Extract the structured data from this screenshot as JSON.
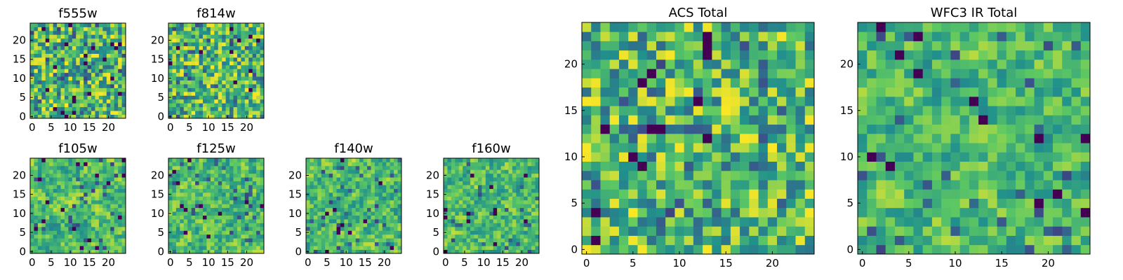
{
  "figure": {
    "colormap": "viridis",
    "colormap_stops": [
      "#440154",
      "#3b528b",
      "#21918c",
      "#5ec962",
      "#fde725"
    ]
  },
  "chart_data": [
    {
      "type": "heatmap",
      "title": "f555w",
      "grid_size": 25,
      "xticks": [
        0,
        5,
        10,
        15,
        20
      ],
      "yticks": [
        0,
        5,
        10,
        15,
        20
      ],
      "xlim": [
        0,
        24
      ],
      "ylim": [
        0,
        24
      ],
      "values_description": "25x25 random noise image, mostly green-yellow"
    },
    {
      "type": "heatmap",
      "title": "f814w",
      "grid_size": 25,
      "xticks": [
        0,
        5,
        10,
        15,
        20
      ],
      "yticks": [
        0,
        5,
        10,
        15,
        20
      ],
      "xlim": [
        0,
        24
      ],
      "ylim": [
        0,
        24
      ]
    },
    {
      "type": "heatmap",
      "title": "f105w",
      "grid_size": 25,
      "xticks": [
        0,
        5,
        10,
        15,
        20
      ],
      "yticks": [
        0,
        5,
        10,
        15,
        20
      ],
      "xlim": [
        0,
        24
      ],
      "ylim": [
        0,
        24
      ]
    },
    {
      "type": "heatmap",
      "title": "f125w",
      "grid_size": 25,
      "xticks": [
        0,
        5,
        10,
        15,
        20
      ],
      "yticks": [
        0,
        5,
        10,
        15,
        20
      ],
      "xlim": [
        0,
        24
      ],
      "ylim": [
        0,
        24
      ]
    },
    {
      "type": "heatmap",
      "title": "f140w",
      "grid_size": 25,
      "xticks": [
        0,
        5,
        10,
        15,
        20
      ],
      "yticks": [
        0,
        5,
        10,
        15,
        20
      ],
      "xlim": [
        0,
        24
      ],
      "ylim": [
        0,
        24
      ]
    },
    {
      "type": "heatmap",
      "title": "f160w",
      "grid_size": 25,
      "xticks": [
        0,
        5,
        10,
        15,
        20
      ],
      "yticks": [
        0,
        5,
        10,
        15,
        20
      ],
      "xlim": [
        0,
        24
      ],
      "ylim": [
        0,
        24
      ]
    },
    {
      "type": "heatmap",
      "title": "ACS Total",
      "grid_size": 25,
      "xticks": [
        0,
        5,
        10,
        15,
        20
      ],
      "yticks": [
        0,
        5,
        10,
        15,
        20
      ],
      "xlim": [
        0,
        24
      ],
      "ylim": [
        0,
        24
      ]
    },
    {
      "type": "heatmap",
      "title": "WFC3 IR Total",
      "grid_size": 25,
      "xticks": [
        0,
        5,
        10,
        15,
        20
      ],
      "yticks": [
        0,
        5,
        10,
        15,
        20
      ],
      "xlim": [
        0,
        24
      ],
      "ylim": [
        0,
        24
      ]
    }
  ]
}
